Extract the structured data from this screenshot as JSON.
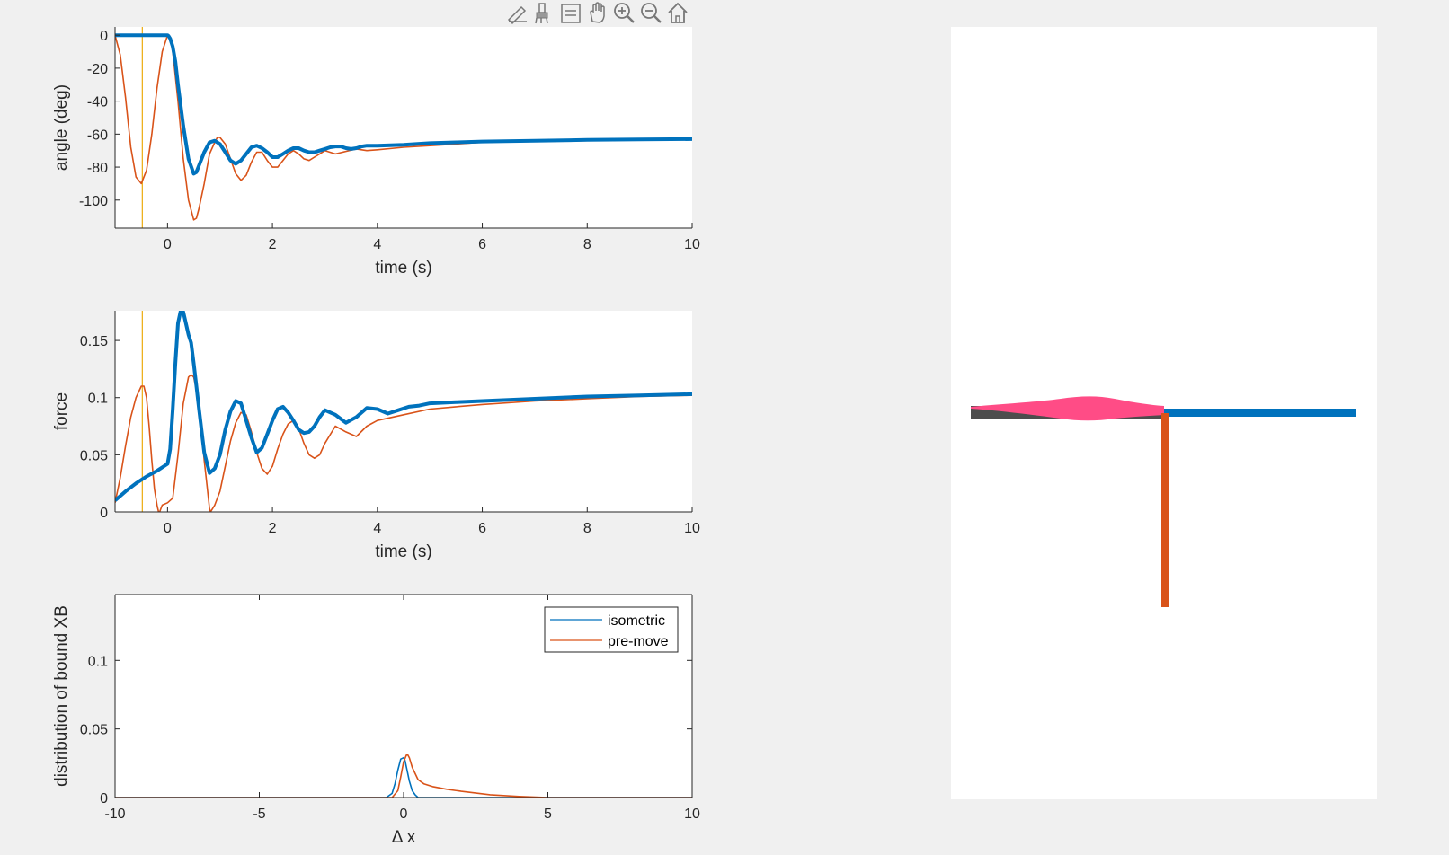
{
  "toolbar": {
    "icons": [
      "edit-plot-icon",
      "brush-icon",
      "data-tip-icon",
      "pan-icon",
      "zoom-in-icon",
      "zoom-out-icon",
      "home-icon"
    ]
  },
  "colors": {
    "isometric": "#0072BD",
    "premove": "#D95319",
    "marker": "#EDB120",
    "axis": "#262626",
    "muscle_pink": "#FF4C86",
    "filament_gray": "#4D4D4D",
    "panel_bg": "#FFFFFF",
    "figure_bg": "#F0F0F0"
  },
  "chart_data": [
    {
      "id": "angle",
      "type": "line",
      "xlabel": "time (s)",
      "ylabel": "angle (deg)",
      "xlim": [
        -1,
        10
      ],
      "ylim": [
        -117,
        5
      ],
      "xticks": [
        "0",
        "2",
        "4",
        "6",
        "8",
        "10"
      ],
      "yticks": [
        "0",
        "-20",
        "-40",
        "-60",
        "-80",
        "-100"
      ],
      "vline_x": -0.48,
      "series": [
        {
          "key": "isometric",
          "x": [
            -1,
            0,
            0.02,
            0.05,
            0.1,
            0.15,
            0.2,
            0.3,
            0.4,
            0.5,
            0.55,
            0.6,
            0.7,
            0.8,
            0.9,
            1.0,
            1.1,
            1.2,
            1.3,
            1.4,
            1.5,
            1.6,
            1.7,
            1.8,
            1.9,
            2.0,
            2.1,
            2.2,
            2.3,
            2.4,
            2.5,
            2.6,
            2.7,
            2.8,
            2.9,
            3.0,
            3.1,
            3.2,
            3.3,
            3.4,
            3.5,
            3.6,
            3.7,
            3.8,
            3.9,
            4.0,
            4.5,
            5,
            5.5,
            6,
            7,
            8,
            9,
            10
          ],
          "y": [
            0,
            0,
            -0.5,
            -2,
            -7,
            -16,
            -30,
            -55,
            -75,
            -84,
            -83,
            -79,
            -71,
            -65,
            -64,
            -66,
            -71,
            -76,
            -78,
            -76,
            -72,
            -68,
            -67,
            -68.5,
            -71,
            -74,
            -74,
            -72,
            -70,
            -68.5,
            -68.5,
            -70,
            -71,
            -71,
            -70,
            -69,
            -68,
            -67.5,
            -67.5,
            -68.5,
            -69,
            -68.5,
            -67.5,
            -67,
            -67,
            -67,
            -66.5,
            -65.5,
            -65,
            -64.5,
            -64,
            -63.5,
            -63.2,
            -63
          ]
        },
        {
          "key": "premove",
          "x": [
            -1,
            -0.9,
            -0.8,
            -0.7,
            -0.6,
            -0.5,
            -0.4,
            -0.3,
            -0.2,
            -0.1,
            0,
            0.05,
            0.1,
            0.2,
            0.3,
            0.4,
            0.5,
            0.55,
            0.6,
            0.7,
            0.8,
            0.9,
            0.95,
            1.0,
            1.1,
            1.2,
            1.3,
            1.4,
            1.5,
            1.6,
            1.7,
            1.8,
            1.9,
            2.0,
            2.1,
            2.2,
            2.3,
            2.4,
            2.5,
            2.6,
            2.7,
            2.8,
            2.9,
            3.0,
            3.2,
            3.4,
            3.6,
            3.8,
            4.0,
            4.5,
            5,
            5.5,
            6,
            7,
            8,
            9,
            10
          ],
          "y": [
            0,
            -12,
            -38,
            -68,
            -86,
            -90,
            -82,
            -60,
            -32,
            -10,
            0,
            -2,
            -10,
            -40,
            -75,
            -100,
            -112,
            -111,
            -105,
            -90,
            -72,
            -65,
            -62,
            -62,
            -66,
            -75,
            -84,
            -88,
            -85,
            -77,
            -71,
            -71,
            -76,
            -80,
            -80,
            -76,
            -72,
            -70,
            -72,
            -75,
            -76,
            -74,
            -72,
            -70,
            -72,
            -70.5,
            -69,
            -70,
            -69.5,
            -68,
            -67,
            -66,
            -65,
            -64.5,
            -64,
            -63.5,
            -63
          ]
        }
      ]
    },
    {
      "id": "force",
      "type": "line",
      "xlabel": "time (s)",
      "ylabel": "force",
      "xlim": [
        -1,
        10
      ],
      "ylim": [
        0,
        0.176
      ],
      "xticks": [
        "0",
        "2",
        "4",
        "6",
        "8",
        "10"
      ],
      "yticks": [
        "0",
        "0.05",
        "0.1",
        "0.15"
      ],
      "vline_x": -0.48,
      "series": [
        {
          "key": "isometric",
          "x": [
            -1,
            -0.8,
            -0.6,
            -0.4,
            -0.2,
            0,
            0.05,
            0.1,
            0.15,
            0.2,
            0.25,
            0.3,
            0.35,
            0.4,
            0.45,
            0.5,
            0.55,
            0.6,
            0.7,
            0.8,
            0.9,
            1.0,
            1.1,
            1.2,
            1.3,
            1.4,
            1.5,
            1.6,
            1.7,
            1.8,
            1.9,
            2.0,
            2.1,
            2.2,
            2.3,
            2.4,
            2.5,
            2.6,
            2.7,
            2.8,
            2.9,
            3.0,
            3.2,
            3.4,
            3.6,
            3.8,
            4.0,
            4.2,
            4.4,
            4.6,
            4.8,
            5.0,
            5.5,
            6,
            7,
            8,
            9,
            10
          ],
          "y": [
            0.01,
            0.018,
            0.025,
            0.031,
            0.036,
            0.042,
            0.055,
            0.09,
            0.13,
            0.165,
            0.176,
            0.175,
            0.165,
            0.155,
            0.148,
            0.13,
            0.11,
            0.09,
            0.052,
            0.034,
            0.038,
            0.05,
            0.072,
            0.088,
            0.097,
            0.095,
            0.08,
            0.065,
            0.052,
            0.056,
            0.068,
            0.08,
            0.09,
            0.092,
            0.087,
            0.08,
            0.072,
            0.069,
            0.07,
            0.075,
            0.083,
            0.089,
            0.085,
            0.078,
            0.083,
            0.091,
            0.09,
            0.086,
            0.089,
            0.092,
            0.093,
            0.095,
            0.096,
            0.097,
            0.099,
            0.101,
            0.102,
            0.103
          ]
        },
        {
          "key": "premove",
          "x": [
            -1,
            -0.9,
            -0.8,
            -0.7,
            -0.6,
            -0.5,
            -0.45,
            -0.4,
            -0.35,
            -0.3,
            -0.25,
            -0.2,
            -0.17,
            -0.15,
            -0.1,
            0,
            0.1,
            0.2,
            0.3,
            0.4,
            0.45,
            0.5,
            0.6,
            0.7,
            0.8,
            0.82,
            0.9,
            1.0,
            1.1,
            1.2,
            1.3,
            1.4,
            1.5,
            1.6,
            1.7,
            1.8,
            1.9,
            2.0,
            2.1,
            2.2,
            2.3,
            2.4,
            2.5,
            2.6,
            2.7,
            2.8,
            2.9,
            3.0,
            3.2,
            3.4,
            3.6,
            3.8,
            4.0,
            4.5,
            5,
            5.5,
            6,
            7,
            8,
            9,
            10
          ],
          "y": [
            0.008,
            0.03,
            0.058,
            0.083,
            0.1,
            0.11,
            0.11,
            0.1,
            0.075,
            0.045,
            0.02,
            0.006,
            0,
            0,
            0.006,
            0.008,
            0.012,
            0.05,
            0.095,
            0.118,
            0.12,
            0.118,
            0.095,
            0.045,
            0.003,
            0,
            0.006,
            0.018,
            0.04,
            0.062,
            0.078,
            0.087,
            0.085,
            0.07,
            0.052,
            0.038,
            0.033,
            0.04,
            0.055,
            0.068,
            0.077,
            0.08,
            0.073,
            0.06,
            0.05,
            0.047,
            0.05,
            0.06,
            0.075,
            0.07,
            0.066,
            0.075,
            0.08,
            0.085,
            0.09,
            0.092,
            0.094,
            0.097,
            0.099,
            0.101,
            0.102
          ]
        }
      ]
    },
    {
      "id": "distribution",
      "type": "line",
      "xlabel": "Δ x",
      "ylabel": "distribution of bound XB",
      "xlim": [
        -10,
        10
      ],
      "ylim": [
        0,
        0.148
      ],
      "xticks": [
        "-10",
        "-5",
        "0",
        "5",
        "10"
      ],
      "yticks": [
        "0",
        "0.05",
        "0.1"
      ],
      "legend": {
        "position": "top-right",
        "entries": [
          "isometric",
          "pre-move"
        ]
      },
      "series": [
        {
          "key": "isometric",
          "name": "isometric",
          "x": [
            -10,
            -0.6,
            -0.4,
            -0.3,
            -0.2,
            -0.1,
            0,
            0.05,
            0.1,
            0.2,
            0.3,
            0.4,
            0.5,
            10
          ],
          "y": [
            0,
            0,
            0.003,
            0.01,
            0.02,
            0.028,
            0.029,
            0.027,
            0.022,
            0.012,
            0.005,
            0.002,
            0,
            0
          ]
        },
        {
          "key": "premove",
          "name": "pre-move",
          "x": [
            -10,
            -0.4,
            -0.2,
            -0.1,
            0,
            0.1,
            0.15,
            0.2,
            0.3,
            0.5,
            0.7,
            1.0,
            1.5,
            2.0,
            3.0,
            4.0,
            5.0,
            10
          ],
          "y": [
            0,
            0,
            0.005,
            0.015,
            0.026,
            0.031,
            0.031,
            0.029,
            0.022,
            0.013,
            0.01,
            0.008,
            0.006,
            0.0045,
            0.002,
            0.0008,
            0,
            0
          ]
        }
      ]
    }
  ]
}
